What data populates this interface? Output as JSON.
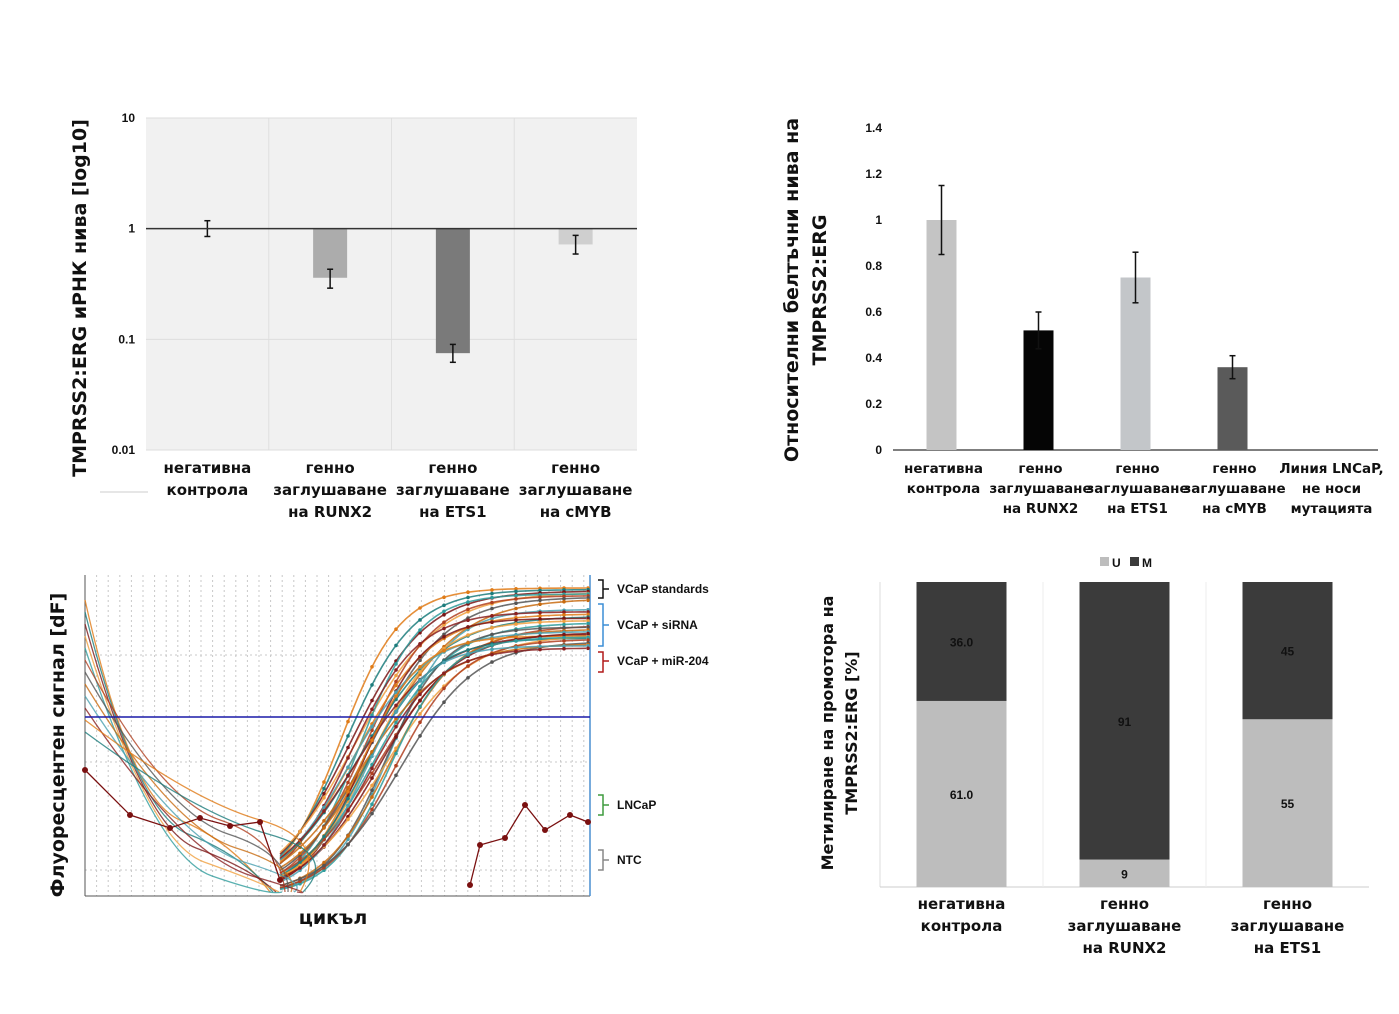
{
  "chart_data": [
    {
      "type": "bar",
      "ylabel": "TMPRSS2:ERG иРНК нива [log10]",
      "yscale": "log",
      "ylim": [
        0.01,
        10
      ],
      "yticks": [
        "10",
        "1",
        "0.1",
        "0.01"
      ],
      "baseline": 1,
      "categories": [
        [
          "негативна",
          "контрола"
        ],
        [
          "генно",
          "заглушаване",
          "на RUNX2"
        ],
        [
          "генно",
          "заглушаване",
          "на ETS1"
        ],
        [
          "генно",
          "заглушаване",
          "на cMYB"
        ]
      ],
      "values": [
        1.0,
        0.36,
        0.075,
        0.72
      ],
      "errors": [
        [
          0.85,
          1.18
        ],
        [
          0.29,
          0.43
        ],
        [
          0.062,
          0.09
        ],
        [
          0.59,
          0.87
        ]
      ],
      "colors": [
        "#b0b0b0",
        "#acacac",
        "#7a7a7a",
        "#cfcfcf"
      ]
    },
    {
      "type": "bar",
      "ylabel": [
        "Относителни белтъчни нива на",
        "TMPRSS2:ERG"
      ],
      "ylim": [
        0,
        1.4
      ],
      "yticks": [
        "1.4",
        "1.2",
        "1",
        "0.8",
        "0.6",
        "0.4",
        "0.2",
        "0"
      ],
      "categories": [
        [
          "негативна",
          "контрола"
        ],
        [
          "генно",
          "заглушаване",
          "на RUNX2"
        ],
        [
          "генно",
          "заглушаване",
          "на ETS1"
        ],
        [
          "генно",
          "заглушаване",
          "на cMYB"
        ],
        [
          "Линия LNCaP,",
          "не носи",
          "мутацията"
        ]
      ],
      "values": [
        1.0,
        0.52,
        0.75,
        0.36,
        0.0
      ],
      "errors": [
        0.15,
        0.08,
        0.11,
        0.05,
        0
      ],
      "colors": [
        "#c4c4c4",
        "#050505",
        "#c3c6c9",
        "#5a5a5a",
        "#c4c4c4"
      ]
    },
    {
      "type": "line",
      "xlabel": "цикъл",
      "ylabel": "Флуоресцентен сигнал [dF]",
      "threshold_line": true,
      "groups": [
        {
          "name": "VCaP standards",
          "color": "#111111",
          "plateau": 0.985,
          "count": 8
        },
        {
          "name": "VCaP + siRNA",
          "color": "#3b8ed6",
          "plateau": 0.92,
          "count": 14
        },
        {
          "name": "VCaP + miR-204",
          "color": "#b21a1a",
          "plateau": 0.85,
          "count": 8
        },
        {
          "name": "LNCaP",
          "color": "#3f9b3f",
          "plateau": 0.0,
          "count": 1
        },
        {
          "name": "NTC",
          "color": "#888888",
          "plateau": 0.0,
          "count": 1
        }
      ]
    },
    {
      "type": "bar",
      "stacked": true,
      "ylabel": [
        "Метилиране на промотора на",
        "TMPRSS2:ERG [%]"
      ],
      "legend": [
        "U",
        "M"
      ],
      "legend_position": "top",
      "categories": [
        [
          "негативна",
          "контрола"
        ],
        [
          "генно",
          "заглушаване",
          "на RUNX2"
        ],
        [
          "генно",
          "заглушаване",
          "на ETS1"
        ]
      ],
      "series": [
        {
          "name": "U",
          "color": "#bdbdbd",
          "values": [
            61.0,
            9,
            55
          ],
          "labels": [
            "61.0",
            "9",
            "55"
          ]
        },
        {
          "name": "M",
          "color": "#3b3b3b",
          "values": [
            36.0,
            91,
            45
          ],
          "labels": [
            "36.0",
            "91",
            "45"
          ]
        }
      ]
    }
  ]
}
